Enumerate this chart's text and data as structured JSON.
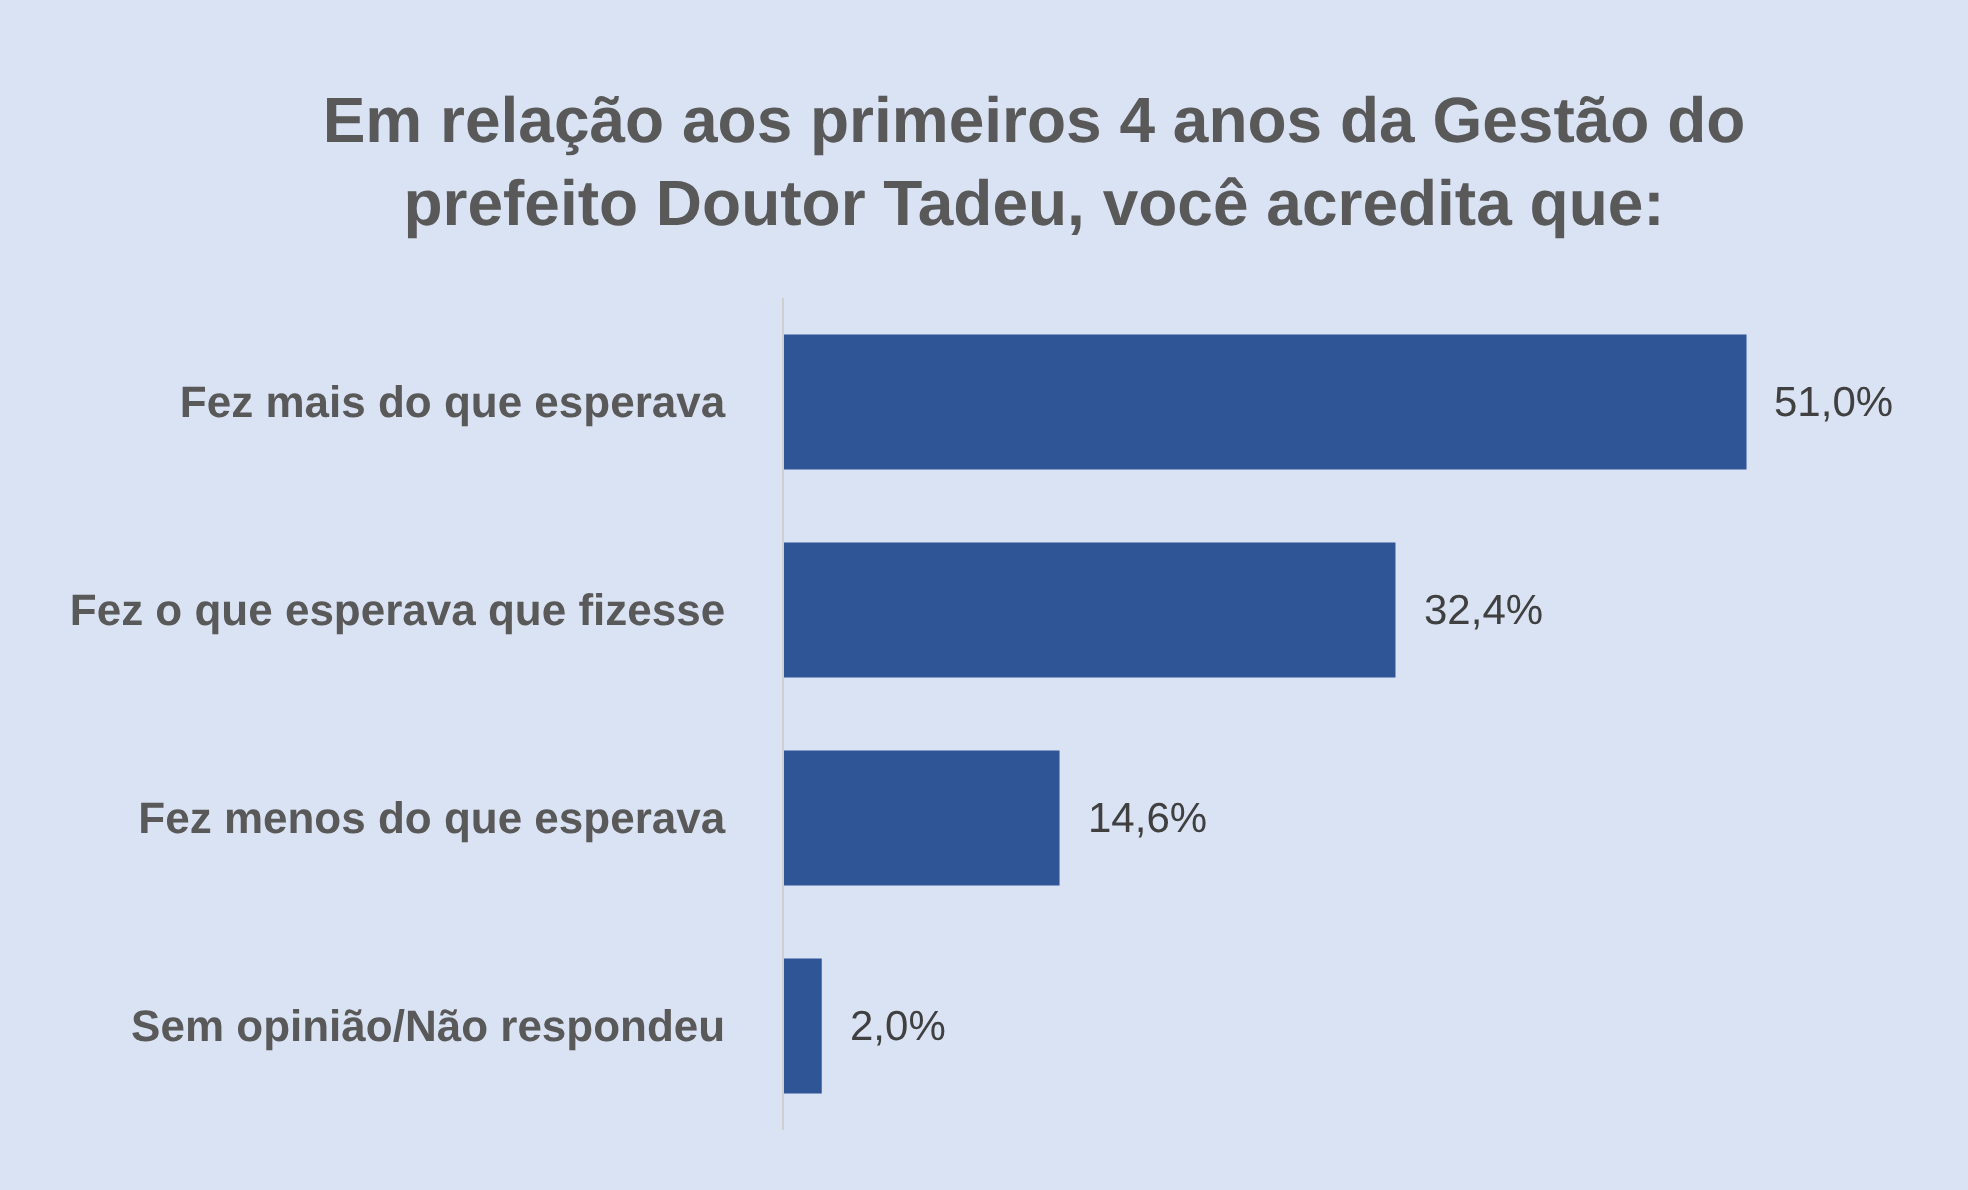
{
  "chart_data": {
    "type": "bar",
    "orientation": "horizontal",
    "title": "Em relação aos primeiros 4 anos da Gestão do prefeito Doutor Tadeu, você acredita que:",
    "categories": [
      "Fez mais do que esperava",
      "Fez o que esperava que fizesse",
      "Fez menos do que esperava",
      "Sem opinião/Não respondeu"
    ],
    "values": [
      51.0,
      32.4,
      14.6,
      2.0
    ],
    "value_labels": [
      "51,0%",
      "32,4%",
      "14,6%",
      "2,0%"
    ],
    "color": "#2f5597"
  }
}
